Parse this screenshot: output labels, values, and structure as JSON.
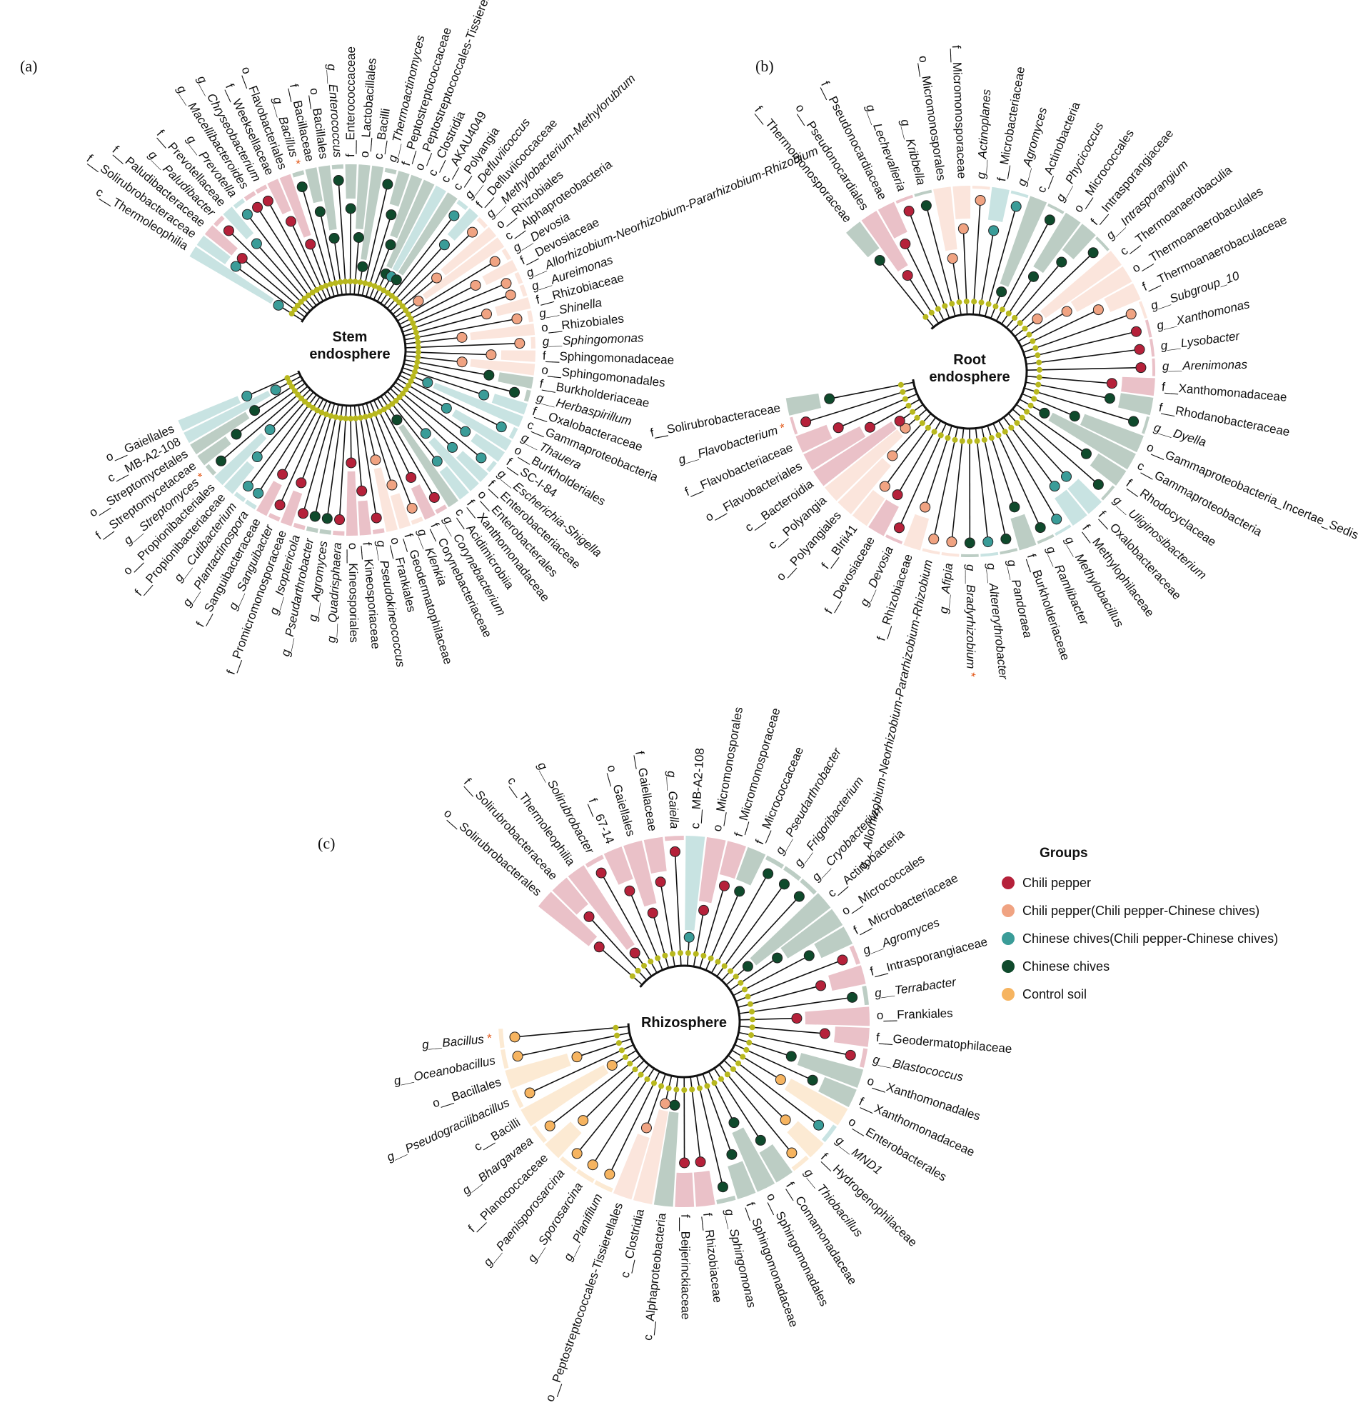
{
  "colors": {
    "chili_pepper": "#b5213a",
    "chili_pepper_shared": "#f0a382",
    "chinese_chives_shared": "#3a9c98",
    "chinese_chives": "#0f4a2c",
    "control_soil": "#f6b460",
    "node_default": "#b8b81e",
    "significant_mark": "#e35a1b"
  },
  "legend": {
    "title": "Groups",
    "items": [
      {
        "label": "Chili pepper",
        "key": "chili_pepper"
      },
      {
        "label": "Chili pepper(Chili pepper-Chinese chives)",
        "key": "chili_pepper_shared"
      },
      {
        "label": "Chinese chives(Chili pepper-Chinese chives)",
        "key": "chinese_chives_shared"
      },
      {
        "label": "Chinese chives",
        "key": "chinese_chives"
      },
      {
        "label": "Control soil",
        "key": "control_soil"
      }
    ]
  },
  "panels": [
    {
      "id": "a",
      "tag": "(a)",
      "title_lines": [
        "Stem",
        "endosphere"
      ],
      "clades": [
        {
          "label": "c__Thermoleophilia",
          "group": "chinese_chives_shared"
        },
        {
          "label": "f__Solirubrobacteraceae",
          "group": "chinese_chives_shared"
        },
        {
          "label": "f__Paludibacteraceae",
          "group": "chili_pepper"
        },
        {
          "label": "g__Paludibacter",
          "group": "chili_pepper"
        },
        {
          "label": "f__Prevotellaceae",
          "group": "chinese_chives_shared"
        },
        {
          "label": "g__Prevotella",
          "group": "chinese_chives_shared"
        },
        {
          "label": "g__Macellibacteroides",
          "group": "chili_pepper"
        },
        {
          "label": "g__Chryseobacterium",
          "group": "chili_pepper"
        },
        {
          "label": "f__Weeksellaceae",
          "group": "chili_pepper"
        },
        {
          "label": "o__Flavobacteriales",
          "group": "chili_pepper"
        },
        {
          "label": "g__Bacillus",
          "group": "chinese_chives",
          "mark": "*"
        },
        {
          "label": "f__Bacillaceae",
          "group": "chinese_chives"
        },
        {
          "label": "o__Bacillales",
          "group": "chinese_chives"
        },
        {
          "label": "g__Enterococcus",
          "group": "chinese_chives"
        },
        {
          "label": "f__Enterococcaceae",
          "group": "chinese_chives"
        },
        {
          "label": "o__Lactobacillales",
          "group": "chinese_chives"
        },
        {
          "label": "c__Bacilli",
          "group": "chinese_chives"
        },
        {
          "label": "g__Thermoactinomyces",
          "group": "chinese_chives"
        },
        {
          "label": "f__Peptostreptococcaceae",
          "group": "chinese_chives"
        },
        {
          "label": "o__Peptostreptococcales-Tissierellales",
          "group": "chinese_chives"
        },
        {
          "label": "c__Clostridia",
          "group": "chinese_chives"
        },
        {
          "label": "c__AKAU4049",
          "group": "chinese_chives_shared"
        },
        {
          "label": "c__Polyangia",
          "group": "chinese_chives"
        },
        {
          "label": "g__Defluviicoccus",
          "group": "chinese_chives_shared"
        },
        {
          "label": "f__Defluviicoccaceae",
          "group": "chinese_chives_shared"
        },
        {
          "label": "g__Methylobacterium-Methylorubrum",
          "group": "chili_pepper_shared"
        },
        {
          "label": "o__Rhizobiales",
          "group": "chili_pepper_shared"
        },
        {
          "label": "c__Alphaproteobacteria",
          "group": "chili_pepper_shared"
        },
        {
          "label": "g__Devosia",
          "group": "chili_pepper_shared"
        },
        {
          "label": "f__Devosiaceae",
          "group": "chili_pepper_shared"
        },
        {
          "label": "g__Allorhizobium-Neorhizobium-Pararhizobium-Rhizobium",
          "group": "chili_pepper_shared"
        },
        {
          "label": "g__Aureimonas",
          "group": "chili_pepper_shared"
        },
        {
          "label": "f__Rhizobiaceae",
          "group": "chili_pepper_shared"
        },
        {
          "label": "g__Shinella",
          "group": "chili_pepper_shared"
        },
        {
          "label": "o__Rhizobiales",
          "group": "chili_pepper_shared"
        },
        {
          "label": "g__Sphingomonas",
          "group": "chili_pepper_shared"
        },
        {
          "label": "f__Sphingomonadaceae",
          "group": "chili_pepper_shared"
        },
        {
          "label": "o__Sphingomonadales",
          "group": "chili_pepper_shared"
        },
        {
          "label": "f__Burkholderiaceae",
          "group": "chinese_chives"
        },
        {
          "label": "g__Herbaspirillum",
          "group": "chinese_chives"
        },
        {
          "label": "f__Oxalobacteraceae",
          "group": "chinese_chives_shared"
        },
        {
          "label": "c__Gammaproteobacteria",
          "group": "chinese_chives_shared"
        },
        {
          "label": "g__Thauera",
          "group": "chinese_chives_shared"
        },
        {
          "label": "o__Burkholderiales",
          "group": "chinese_chives_shared"
        },
        {
          "label": "f__SC-I-84",
          "group": "chinese_chives_shared"
        },
        {
          "label": "g__Escherichia-Shigella",
          "group": "chinese_chives_shared"
        },
        {
          "label": "f__Enterobacteriaceae",
          "group": "chinese_chives_shared"
        },
        {
          "label": "o__Enterobacterales",
          "group": "chinese_chives_shared"
        },
        {
          "label": "f__Xanthomonadaceae",
          "group": "chinese_chives_shared"
        },
        {
          "label": "c__Acidimicrobiia",
          "group": "chinese_chives"
        },
        {
          "label": "g__Corynebacterium",
          "group": "chili_pepper"
        },
        {
          "label": "f__Corynebacteriaceae",
          "group": "chili_pepper"
        },
        {
          "label": "g__Klenkia",
          "group": "chili_pepper_shared"
        },
        {
          "label": "f__Geodermatophilaceae",
          "group": "chili_pepper_shared"
        },
        {
          "label": "o__Frankiales",
          "group": "chili_pepper_shared"
        },
        {
          "label": "g__Pseudokineococcus",
          "group": "chili_pepper"
        },
        {
          "label": "f__Kineosporiaceae",
          "group": "chili_pepper"
        },
        {
          "label": "o__Kineosporiales",
          "group": "chili_pepper"
        },
        {
          "label": "g__Quadrisphaera",
          "group": "chili_pepper"
        },
        {
          "label": "g__Agromyces",
          "group": "chinese_chives"
        },
        {
          "label": "g__Pseudarthrobacter",
          "group": "chinese_chives"
        },
        {
          "label": "g__Isoptericola",
          "group": "chili_pepper"
        },
        {
          "label": "f__Promicromonosporaceae",
          "group": "chili_pepper"
        },
        {
          "label": "g__Sanguibacter",
          "group": "chili_pepper"
        },
        {
          "label": "f__Sanguibacteraceae",
          "group": "chili_pepper"
        },
        {
          "label": "g__Plantactinospora",
          "group": "chinese_chives_shared"
        },
        {
          "label": "g__Cutibacterium",
          "group": "chinese_chives_shared"
        },
        {
          "label": "f__Propionibacteriaceae",
          "group": "chinese_chives_shared"
        },
        {
          "label": "o__Propionibacteriales",
          "group": "chinese_chives_shared"
        },
        {
          "label": "g__Streptomyces",
          "group": "chinese_chives",
          "mark": "*"
        },
        {
          "label": "f__Streptomycetaceae",
          "group": "chinese_chives"
        },
        {
          "label": "o__Streptomycetales",
          "group": "chinese_chives"
        },
        {
          "label": "c__MB-A2-108",
          "group": "chinese_chives_shared"
        },
        {
          "label": "o__Gaiellales",
          "group": "chinese_chives_shared"
        }
      ]
    },
    {
      "id": "b",
      "tag": "(b)",
      "title_lines": [
        "Root",
        "endosphere"
      ],
      "clades": [
        {
          "label": "f__Thermomonosporaceae",
          "group": "chinese_chives"
        },
        {
          "label": "o__Pseudonocardiales",
          "group": "chili_pepper"
        },
        {
          "label": "f__Pseudonocardiaceae",
          "group": "chili_pepper"
        },
        {
          "label": "g__Lechevalieria",
          "group": "chili_pepper"
        },
        {
          "label": "g__Kribbella",
          "group": "chinese_chives"
        },
        {
          "label": "o__Micromonosporales",
          "group": "chili_pepper_shared"
        },
        {
          "label": "f__Micromonosporaceae",
          "group": "chili_pepper_shared"
        },
        {
          "label": "g__Actinoplanes",
          "group": "chili_pepper_shared"
        },
        {
          "label": "f__Microbacteriaceae",
          "group": "chinese_chives_shared"
        },
        {
          "label": "g__Agromyces",
          "group": "chinese_chives_shared"
        },
        {
          "label": "c__Actinobacteria",
          "group": "chinese_chives"
        },
        {
          "label": "g__Phycicoccus",
          "group": "chinese_chives"
        },
        {
          "label": "o__Micrococcales",
          "group": "chinese_chives"
        },
        {
          "label": "f__Intrasporangiaceae",
          "group": "chinese_chives"
        },
        {
          "label": "g__Intrasporangium",
          "group": "chinese_chives"
        },
        {
          "label": "c__Thermoanaerobaculia",
          "group": "chili_pepper_shared"
        },
        {
          "label": "o__Thermoanaerobaculales",
          "group": "chili_pepper_shared"
        },
        {
          "label": "f__Thermoanaerobaculaceae",
          "group": "chili_pepper_shared"
        },
        {
          "label": "g__Subgroup_10",
          "group": "chili_pepper_shared"
        },
        {
          "label": "g__Xanthomonas",
          "group": "chili_pepper"
        },
        {
          "label": "g__Lysobacter",
          "group": "chili_pepper"
        },
        {
          "label": "g__Arenimonas",
          "group": "chili_pepper"
        },
        {
          "label": "f__Xanthomonadaceae",
          "group": "chili_pepper"
        },
        {
          "label": "f__Rhodanobacteraceae",
          "group": "chinese_chives"
        },
        {
          "label": "g__Dyella",
          "group": "chinese_chives"
        },
        {
          "label": "o__Gammaproteobacteria_Incertae_Sedis",
          "group": "chinese_chives"
        },
        {
          "label": "c__Gammaproteobacteria",
          "group": "chinese_chives"
        },
        {
          "label": "f__Rhodocyclaceae",
          "group": "chinese_chives"
        },
        {
          "label": "g__Uliginosibacterium",
          "group": "chinese_chives"
        },
        {
          "label": "f__Oxalobacteraceae",
          "group": "chinese_chives_shared"
        },
        {
          "label": "f__Methylophilaceae",
          "group": "chinese_chives_shared"
        },
        {
          "label": "g__Methylobacillus",
          "group": "chinese_chives_shared"
        },
        {
          "label": "g__Ramlibacter",
          "group": "chinese_chives"
        },
        {
          "label": "f__Burkholderiaceae",
          "group": "chinese_chives"
        },
        {
          "label": "g__Pandoraea",
          "group": "chinese_chives"
        },
        {
          "label": "g__Altererythrobacter",
          "group": "chinese_chives_shared"
        },
        {
          "label": "g__Bradyrhizobium",
          "group": "chinese_chives",
          "mark": "*"
        },
        {
          "label": "g__Afipia",
          "group": "chili_pepper_shared"
        },
        {
          "label": "g__Allorhizobium-Neorhizobium-Pararhizobium-Rhizobium",
          "group": "chili_pepper_shared"
        },
        {
          "label": "f__Rhizobiaceae",
          "group": "chili_pepper_shared"
        },
        {
          "label": "g__Devosia",
          "group": "chili_pepper"
        },
        {
          "label": "f__Devosiaceae",
          "group": "chili_pepper"
        },
        {
          "label": "f__BIrii41",
          "group": "chili_pepper_shared"
        },
        {
          "label": "o__Polyangiales",
          "group": "chili_pepper_shared"
        },
        {
          "label": "c__Polyangia",
          "group": "chili_pepper_shared"
        },
        {
          "label": "c__Bacteroidia",
          "group": "chili_pepper"
        },
        {
          "label": "o__Flavobacteriales",
          "group": "chili_pepper"
        },
        {
          "label": "f__Flavobacteriaceae",
          "group": "chili_pepper"
        },
        {
          "label": "g__Flavobacterium",
          "group": "chili_pepper",
          "mark": "*"
        },
        {
          "label": "f__Solirubrobacteraceae",
          "group": "chinese_chives"
        }
      ]
    },
    {
      "id": "c",
      "tag": "(c)",
      "title_lines": [
        "Rhizosphere"
      ],
      "clades": [
        {
          "label": "o__Solirubrobacterales",
          "group": "chili_pepper"
        },
        {
          "label": "f__Solirubrobacteraceae",
          "group": "chili_pepper"
        },
        {
          "label": "c__Thermoleophilia",
          "group": "chili_pepper"
        },
        {
          "label": "g__Solirubrobacter",
          "group": "chili_pepper"
        },
        {
          "label": "f__67-14",
          "group": "chili_pepper"
        },
        {
          "label": "o__Gaiellales",
          "group": "chili_pepper"
        },
        {
          "label": "f__Gaiellaceae",
          "group": "chili_pepper"
        },
        {
          "label": "g__Gaiella",
          "group": "chili_pepper"
        },
        {
          "label": "c__MB-A2-108",
          "group": "chinese_chives_shared"
        },
        {
          "label": "o__Micromonosporales",
          "group": "chili_pepper"
        },
        {
          "label": "f__Micromonosporaceae",
          "group": "chili_pepper"
        },
        {
          "label": "f__Micrococcaceae",
          "group": "chinese_chives"
        },
        {
          "label": "g__Pseudarthrobacter",
          "group": "chinese_chives"
        },
        {
          "label": "g__Frigoribacterium",
          "group": "chinese_chives"
        },
        {
          "label": "g__Cryobacterium",
          "group": "chinese_chives"
        },
        {
          "label": "c__Actinobacteria",
          "group": "chinese_chives"
        },
        {
          "label": "o__Micrococcales",
          "group": "chinese_chives"
        },
        {
          "label": "f__Microbacteriaceae",
          "group": "chinese_chives"
        },
        {
          "label": "g__Agromyces",
          "group": "chili_pepper"
        },
        {
          "label": "f__Intrasporangiaceae",
          "group": "chili_pepper"
        },
        {
          "label": "g__Terrabacter",
          "group": "chinese_chives"
        },
        {
          "label": "o__Frankiales",
          "group": "chili_pepper"
        },
        {
          "label": "f__Geodermatophilaceae",
          "group": "chili_pepper"
        },
        {
          "label": "g__Blastococcus",
          "group": "chili_pepper"
        },
        {
          "label": "o__Xanthomonadales",
          "group": "chinese_chives"
        },
        {
          "label": "f__Xanthomonadaceae",
          "group": "chinese_chives"
        },
        {
          "label": "o__Enterobacterales",
          "group": "control_soil"
        },
        {
          "label": "g__MND1",
          "group": "chinese_chives_shared"
        },
        {
          "label": "f__Hydrogenophilaceae",
          "group": "control_soil"
        },
        {
          "label": "g__Thiobacillus",
          "group": "control_soil"
        },
        {
          "label": "f__Comamonadaceae",
          "group": "chinese_chives"
        },
        {
          "label": "o__Sphingomonadales",
          "group": "chinese_chives"
        },
        {
          "label": "f__Sphingomonadaceae",
          "group": "chinese_chives"
        },
        {
          "label": "g__Sphingomonas",
          "group": "chinese_chives"
        },
        {
          "label": "f__Rhizobiaceae",
          "group": "chili_pepper"
        },
        {
          "label": "f__Beijerinckiaceae",
          "group": "chili_pepper"
        },
        {
          "label": "c__Alphaproteobacteria",
          "group": "chinese_chives"
        },
        {
          "label": "c__Clostridia",
          "group": "chili_pepper_shared"
        },
        {
          "label": "o__Peptostreptococcales-Tissierellales",
          "group": "chili_pepper_shared"
        },
        {
          "label": "g__Planifilum",
          "group": "control_soil"
        },
        {
          "label": "g__Sporosarcina",
          "group": "control_soil"
        },
        {
          "label": "g__Paenisporosarcina",
          "group": "control_soil"
        },
        {
          "label": "f__Planococcaceae",
          "group": "control_soil"
        },
        {
          "label": "g__Bhargavaea",
          "group": "control_soil"
        },
        {
          "label": "c__Bacilli",
          "group": "control_soil"
        },
        {
          "label": "g__Pseudogracilibacillus",
          "group": "control_soil"
        },
        {
          "label": "o__Bacillales",
          "group": "control_soil"
        },
        {
          "label": "g__Oceanobacillus",
          "group": "control_soil"
        },
        {
          "label": "g__Bacillus",
          "group": "control_soil",
          "mark": "*"
        }
      ]
    }
  ]
}
